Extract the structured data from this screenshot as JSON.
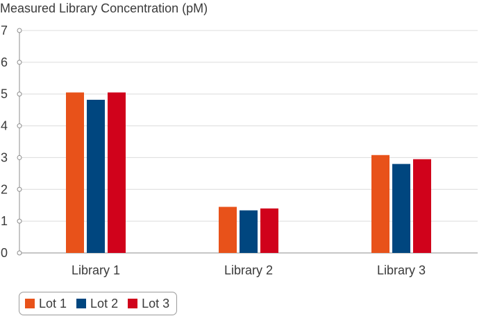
{
  "chart_data": {
    "type": "bar",
    "title": "Measured Library Concentration (pM)",
    "xlabel": "",
    "ylabel": "",
    "categories": [
      "Library 1",
      "Library 2",
      "Library 3"
    ],
    "series": [
      {
        "name": "Lot 1",
        "color": "#e8521a",
        "values": [
          5.05,
          1.45,
          3.08
        ]
      },
      {
        "name": "Lot 2",
        "color": "#00467f",
        "values": [
          4.82,
          1.34,
          2.8
        ]
      },
      {
        "name": "Lot 3",
        "color": "#d0021b",
        "values": [
          5.05,
          1.4,
          2.95
        ]
      }
    ],
    "ylim": [
      0,
      7
    ],
    "yticks": [
      "0",
      "1",
      "2",
      "3",
      "4",
      "5",
      "6",
      "7"
    ],
    "grid": true,
    "legend_position": "bottom-left"
  }
}
